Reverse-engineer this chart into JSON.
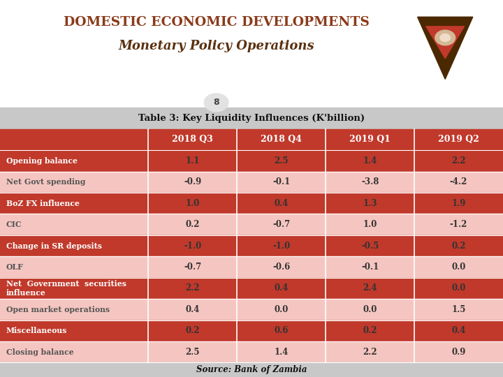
{
  "title_line1": "DOMESTIC ECONOMIC DEVELOPMENTS",
  "title_line2": "Monetary Policy Operations",
  "page_number": "8",
  "table_title": "Table 3: Key Liquidity Influences (K'billion)",
  "col_headers": [
    "2018 Q3",
    "2018 Q4",
    "2019 Q1",
    "2019 Q2"
  ],
  "row_labels": [
    "Opening balance",
    "Net Govt spending",
    "BoZ FX influence",
    "CIC",
    "Change in SR deposits",
    "OLF",
    "Net  Government  securities\ninfluence",
    "Open market operations",
    "Miscellaneous",
    "Closing balance"
  ],
  "data": [
    [
      1.1,
      2.5,
      1.4,
      2.2
    ],
    [
      -0.9,
      -0.1,
      -3.8,
      -4.2
    ],
    [
      1.0,
      0.4,
      1.3,
      1.9
    ],
    [
      0.2,
      -0.7,
      1.0,
      -1.2
    ],
    [
      -1.0,
      -1.0,
      -0.5,
      0.2
    ],
    [
      -0.7,
      -0.6,
      -0.1,
      0.0
    ],
    [
      2.2,
      0.4,
      2.4,
      0.0
    ],
    [
      0.4,
      0.0,
      0.0,
      1.5
    ],
    [
      0.2,
      0.6,
      0.2,
      0.4
    ],
    [
      2.5,
      1.4,
      2.2,
      0.9
    ]
  ],
  "source_text": "Source: Bank of Zambia",
  "header_bg": "#C0392B",
  "odd_row_bg": "#C0392B",
  "even_row_bg": "#F5C6C1",
  "header_text_color": "#FFFFFF",
  "odd_row_text_color": "#FFFFFF",
  "even_row_text_color": "#555555",
  "title_bg": "#FFFFFF",
  "table_header_bg": "#C8C8C8",
  "footer_bg": "#C8C8C8",
  "title_color": "#8B3A1A",
  "subtitle_color": "#5A3010"
}
